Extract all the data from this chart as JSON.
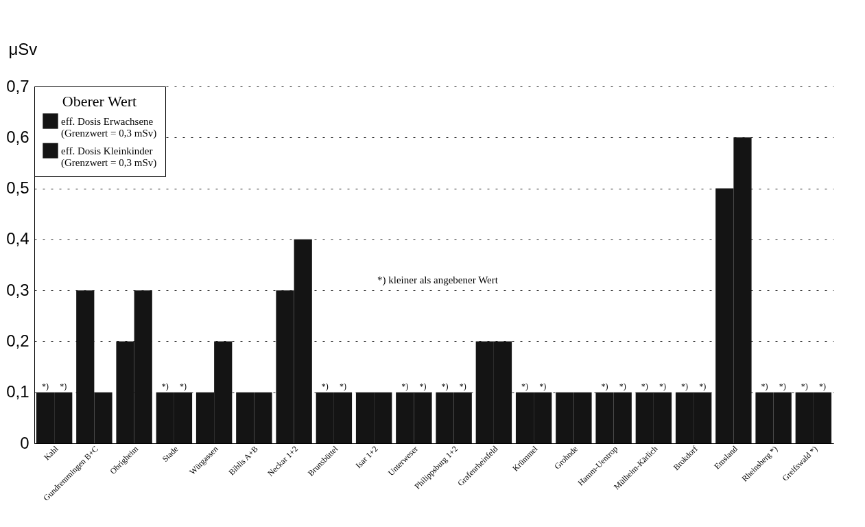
{
  "chart_data": {
    "type": "bar",
    "ylabel": "μSv",
    "legend_title": "Oberer Wert",
    "categories": [
      "Kahl",
      "Gundremmingen B+C",
      "Obrigheim",
      "Stade",
      "Würgassen",
      "Biblis A+B",
      "Neckar 1+2",
      "Brunsbüttel",
      "Isar 1+2",
      "Unterweser",
      "Philippsburg 1+2",
      "Grafenrheinfeld",
      "Krümmel",
      "Grohnde",
      "Hamm-Uentrop",
      "Mülheim-Kärlich",
      "Brokdorf",
      "Emsland",
      "Rheinsberg *)",
      "Greifswald *)"
    ],
    "series": [
      {
        "name": "eff. Dosis Erwachsene\n(Grenzwert = 0,3 mSv)",
        "color": "#141414",
        "values": [
          0.1,
          0.3,
          0.2,
          0.1,
          0.1,
          0.1,
          0.3,
          0.1,
          0.1,
          0.1,
          0.1,
          0.2,
          0.1,
          0.1,
          0.1,
          0.1,
          0.1,
          0.5,
          0.1,
          0.1
        ],
        "value_labels": [
          "*)",
          null,
          null,
          "*)",
          null,
          null,
          null,
          "*)",
          null,
          "*)",
          "*)",
          null,
          "*)",
          null,
          "*)",
          "*)",
          "*)",
          null,
          "*)",
          "*)"
        ]
      },
      {
        "name": "eff. Dosis Kleinkinder\n(Grenzwert = 0,3 mSv)",
        "color": "#141414",
        "values": [
          0.1,
          0.1,
          0.3,
          0.1,
          0.2,
          0.1,
          0.4,
          0.1,
          0.1,
          0.1,
          0.1,
          0.2,
          0.1,
          0.1,
          0.1,
          0.1,
          0.1,
          0.6,
          0.1,
          0.1
        ],
        "value_labels": [
          "*)",
          null,
          null,
          "*)",
          null,
          null,
          null,
          "*)",
          null,
          "*)",
          "*)",
          null,
          "*)",
          null,
          "*)",
          "*)",
          "*)",
          null,
          "*)",
          "*)"
        ]
      }
    ],
    "ylim": [
      0,
      0.7
    ],
    "yticks": [
      0,
      {
        "value": 0.1,
        "label": "0,1"
      },
      {
        "value": 0.2,
        "label": "0,2"
      },
      {
        "value": 0.3,
        "label": "0,3"
      },
      {
        "value": 0.4,
        "label": "0,4"
      },
      {
        "value": 0.5,
        "label": "0,5"
      },
      {
        "value": 0.6,
        "label": "0,6"
      },
      {
        "value": 0.7,
        "label": "0,7"
      }
    ],
    "grid": "y",
    "legend": "top left",
    "annotations": [
      "*) kleiner als angebener Wert"
    ]
  }
}
